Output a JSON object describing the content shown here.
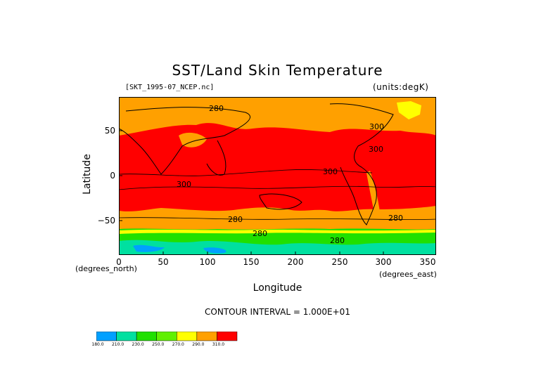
{
  "title": "SST/Land Skin Temperature",
  "dataset_label": "[SKT_1995-07_NCEP.nc]",
  "units_label": "(units:degK)",
  "x_axis": {
    "label": "Longitude",
    "note": "(degrees_east)",
    "ticks": [
      "0",
      "50",
      "100",
      "150",
      "200",
      "250",
      "300",
      "350"
    ]
  },
  "y_axis": {
    "label": "Latitude",
    "note": "(degrees_north)",
    "ticks": [
      "50",
      "0",
      "−50"
    ]
  },
  "contour_interval": "CONTOUR INTERVAL = 1.000E+01",
  "contour_labels": [
    "280",
    "300",
    "300",
    "300",
    "300",
    "280",
    "280",
    "280",
    "280"
  ],
  "legend": {
    "colors": [
      "#00a0ff",
      "#00e0a0",
      "#20e000",
      "#60f000",
      "#ffff00",
      "#ffa000",
      "#ff0000"
    ],
    "labels": [
      "180.0",
      "210.0",
      "230.0",
      "250.0",
      "270.0",
      "290.0",
      "310.0"
    ]
  },
  "colors": {
    "warm": "#ff0000",
    "mid": "#ffa000",
    "cool": "#ffff00",
    "cold": "#20e000"
  }
}
